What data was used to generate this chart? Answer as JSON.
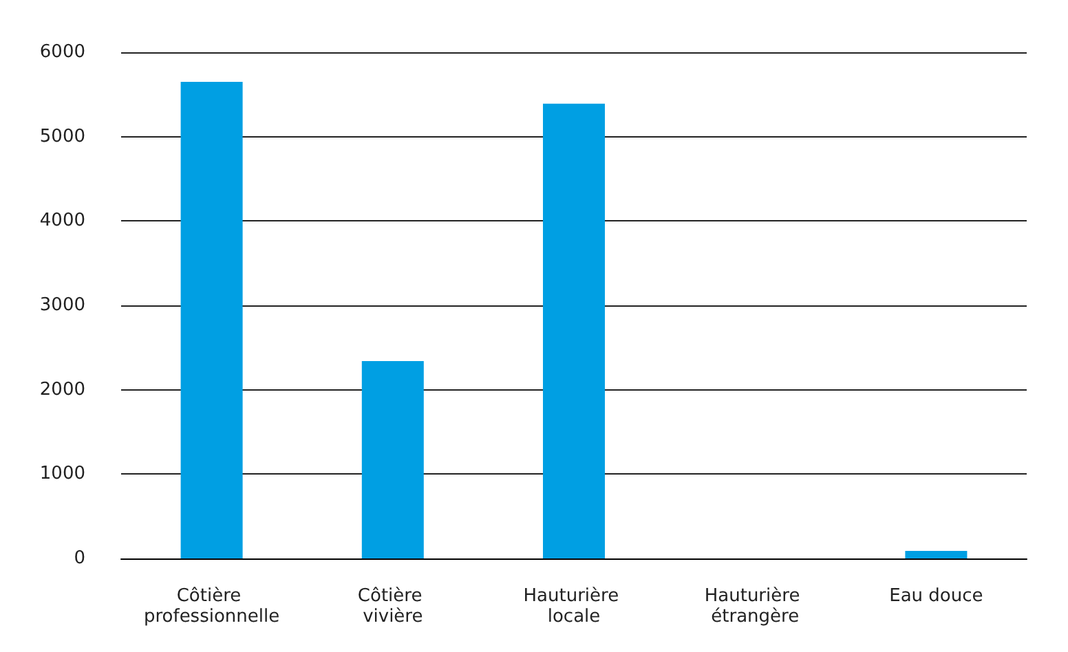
{
  "chart_data": {
    "type": "bar",
    "categories": [
      "Côtière professionnelle",
      "Côtière vivière",
      "Hauturière locale",
      "Hauturière étrangère",
      "Eau douce"
    ],
    "values": [
      5650,
      2340,
      5390,
      0,
      90
    ],
    "color": "#009fe3",
    "ylim": [
      0,
      6000
    ],
    "yticks": [
      0,
      1000,
      2000,
      3000,
      4000,
      5000,
      6000
    ],
    "grid": "y"
  }
}
